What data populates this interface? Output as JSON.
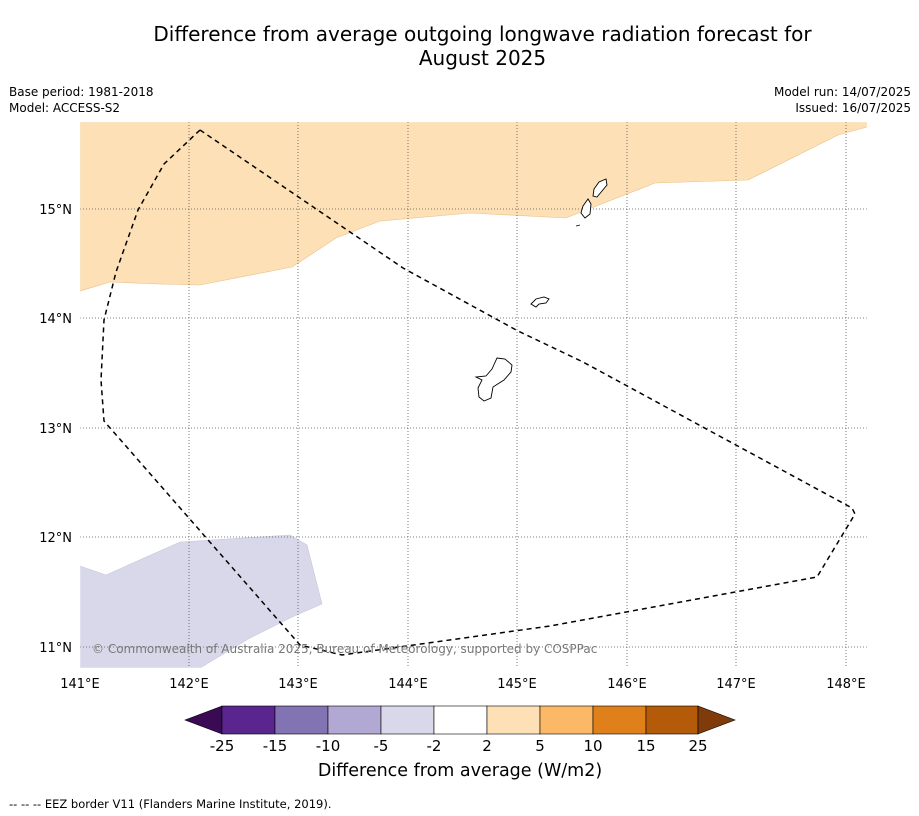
{
  "title_line1": "Difference from average outgoing longwave radiation forecast for",
  "title_line2": "August 2025",
  "meta": {
    "base_period": "Base period: 1981-2018",
    "model": "Model: ACCESS-S2",
    "model_run": "Model run: 14/07/2025",
    "issued": "Issued: 16/07/2025"
  },
  "map": {
    "x_ticks": [
      "141°E",
      "142°E",
      "143°E",
      "144°E",
      "145°E",
      "146°E",
      "147°E",
      "148°E"
    ],
    "y_ticks": [
      "15°N",
      "14°N",
      "13°N",
      "12°N",
      "11°N"
    ],
    "copyright": "© Commonwealth of Australia 2025, Bureau of Meteorology, supported by COSPPac",
    "colors": {
      "positive_2_5": "#fde0b6",
      "negative_5_2": "#d8d8ea",
      "coast": "#000000"
    }
  },
  "colorbar": {
    "ticks": [
      "-25",
      "-15",
      "-10",
      "-5",
      "-2",
      "2",
      "5",
      "10",
      "15",
      "25"
    ],
    "colors": [
      "#3b0a55",
      "#5b2590",
      "#8273b2",
      "#b1a9d4",
      "#d8d8ea",
      "#ffffff",
      "#fde0b6",
      "#fbb866",
      "#e0801a",
      "#b45b09",
      "#7f3c0a"
    ],
    "label": "Difference from average (W/m2)"
  },
  "footer": "--  --  -- EEZ border V11 (Flanders Marine Institute, 2019)."
}
